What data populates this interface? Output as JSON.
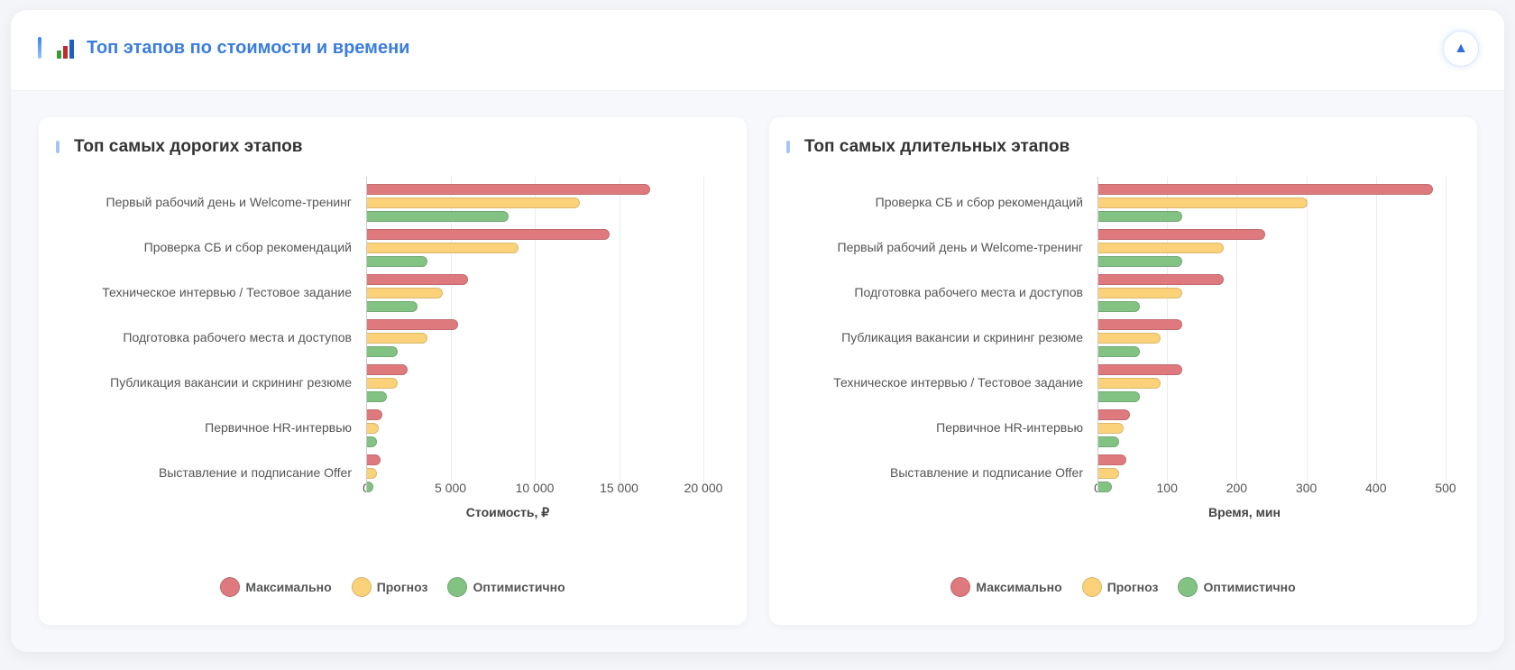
{
  "header": {
    "title": "Топ этапов по стоимости и времени",
    "icon": "bar-chart-icon",
    "collapse_icon": "▲"
  },
  "colors": {
    "max": "#de7a7e",
    "forecast": "#fbd27a",
    "optimistic": "#82c283",
    "accent": "#3b7ddd"
  },
  "legend": [
    "Максимально",
    "Прогноз",
    "Оптимистично"
  ],
  "chart_data": [
    {
      "type": "bar",
      "orientation": "horizontal",
      "title": "Топ самых дорогих этапов",
      "xlabel": "Стоимость, ₽",
      "xlim": [
        0,
        20000
      ],
      "xticks": [
        0,
        5000,
        10000,
        15000,
        20000
      ],
      "xtick_labels": [
        "0",
        "5 000",
        "10 000",
        "15 000",
        "20 000"
      ],
      "grid": true,
      "legend_position": "bottom",
      "categories": [
        "Первый рабочий день и Welcome-тренинг",
        "Проверка СБ и сбор рекомендаций",
        "Техническое интервью / Тестовое задание",
        "Подготовка рабочего места и доступов",
        "Публикация вакансии и скрининг резюме",
        "Первичное HR-интервью",
        "Выставление и подписание Offer"
      ],
      "series": [
        {
          "name": "Максимально",
          "values": [
            16800,
            14400,
            6000,
            5400,
            2400,
            900,
            800
          ]
        },
        {
          "name": "Прогноз",
          "values": [
            12600,
            9000,
            4500,
            3600,
            1800,
            720,
            600
          ]
        },
        {
          "name": "Оптимистично",
          "values": [
            8400,
            3600,
            3000,
            1800,
            1200,
            600,
            400
          ]
        }
      ]
    },
    {
      "type": "bar",
      "orientation": "horizontal",
      "title": "Топ самых длительных этапов",
      "xlabel": "Время, мин",
      "xlim": [
        0,
        500
      ],
      "xticks": [
        0,
        100,
        200,
        300,
        400,
        500
      ],
      "xtick_labels": [
        "0",
        "100",
        "200",
        "300",
        "400",
        "500"
      ],
      "grid": true,
      "legend_position": "bottom",
      "categories": [
        "Проверка СБ и сбор рекомендаций",
        "Первый рабочий день и Welcome-тренинг",
        "Подготовка рабочего места и доступов",
        "Публикация вакансии и скрининг резюме",
        "Техническое интервью / Тестовое задание",
        "Первичное HR-интервью",
        "Выставление и подписание Offer"
      ],
      "series": [
        {
          "name": "Максимально",
          "values": [
            480,
            240,
            180,
            120,
            120,
            45,
            40
          ]
        },
        {
          "name": "Прогноз",
          "values": [
            300,
            180,
            120,
            90,
            90,
            36,
            30
          ]
        },
        {
          "name": "Оптимистично",
          "values": [
            120,
            120,
            60,
            60,
            60,
            30,
            20
          ]
        }
      ]
    }
  ]
}
